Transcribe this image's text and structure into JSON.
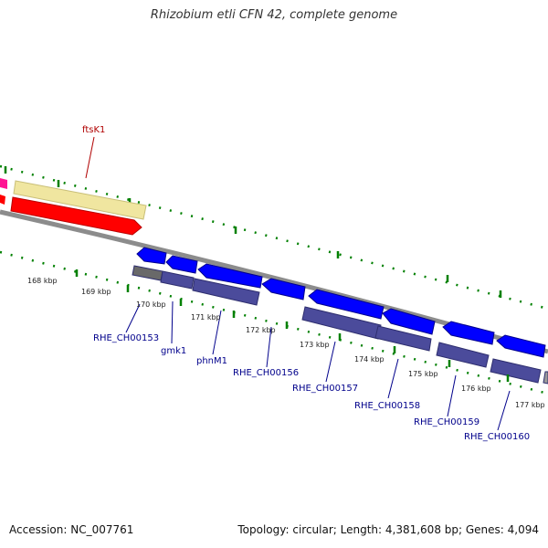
{
  "header": {
    "title": "Rhizobium etli CFN 42, complete genome"
  },
  "footer": {
    "accession": "Accession: NC_007761",
    "topology": "Topology: circular; Length: 4,381,608 bp; Genes: 4,094"
  },
  "kbp_labels": [
    "168 kbp",
    "169 kbp",
    "170 kbp",
    "171 kbp",
    "172 kbp",
    "173 kbp",
    "174 kbp",
    "175 kbp",
    "176 kbp",
    "177 kbp"
  ],
  "gene_labels": {
    "ftsK1": "ftsK1",
    "RHE_CH00153": "RHE_CH00153",
    "gmk1": "gmk1",
    "phnM1": "phnM1",
    "RHE_CH00156": "RHE_CH00156",
    "RHE_CH00157": "RHE_CH00157",
    "RHE_CH00158": "RHE_CH00158",
    "RHE_CH00159": "RHE_CH00159",
    "RHE_CH00160": "RHE_CH00160"
  },
  "colors": {
    "forward_cds": "#ff0000",
    "forward_gene": "#f0e6a0",
    "reverse_cds": "#0000ff",
    "reverse_gene": "#4b4b9b",
    "backbone": "#8c8c8c",
    "tick": "#008000",
    "pseudo": "#696969",
    "magenta": "#ff1493"
  }
}
